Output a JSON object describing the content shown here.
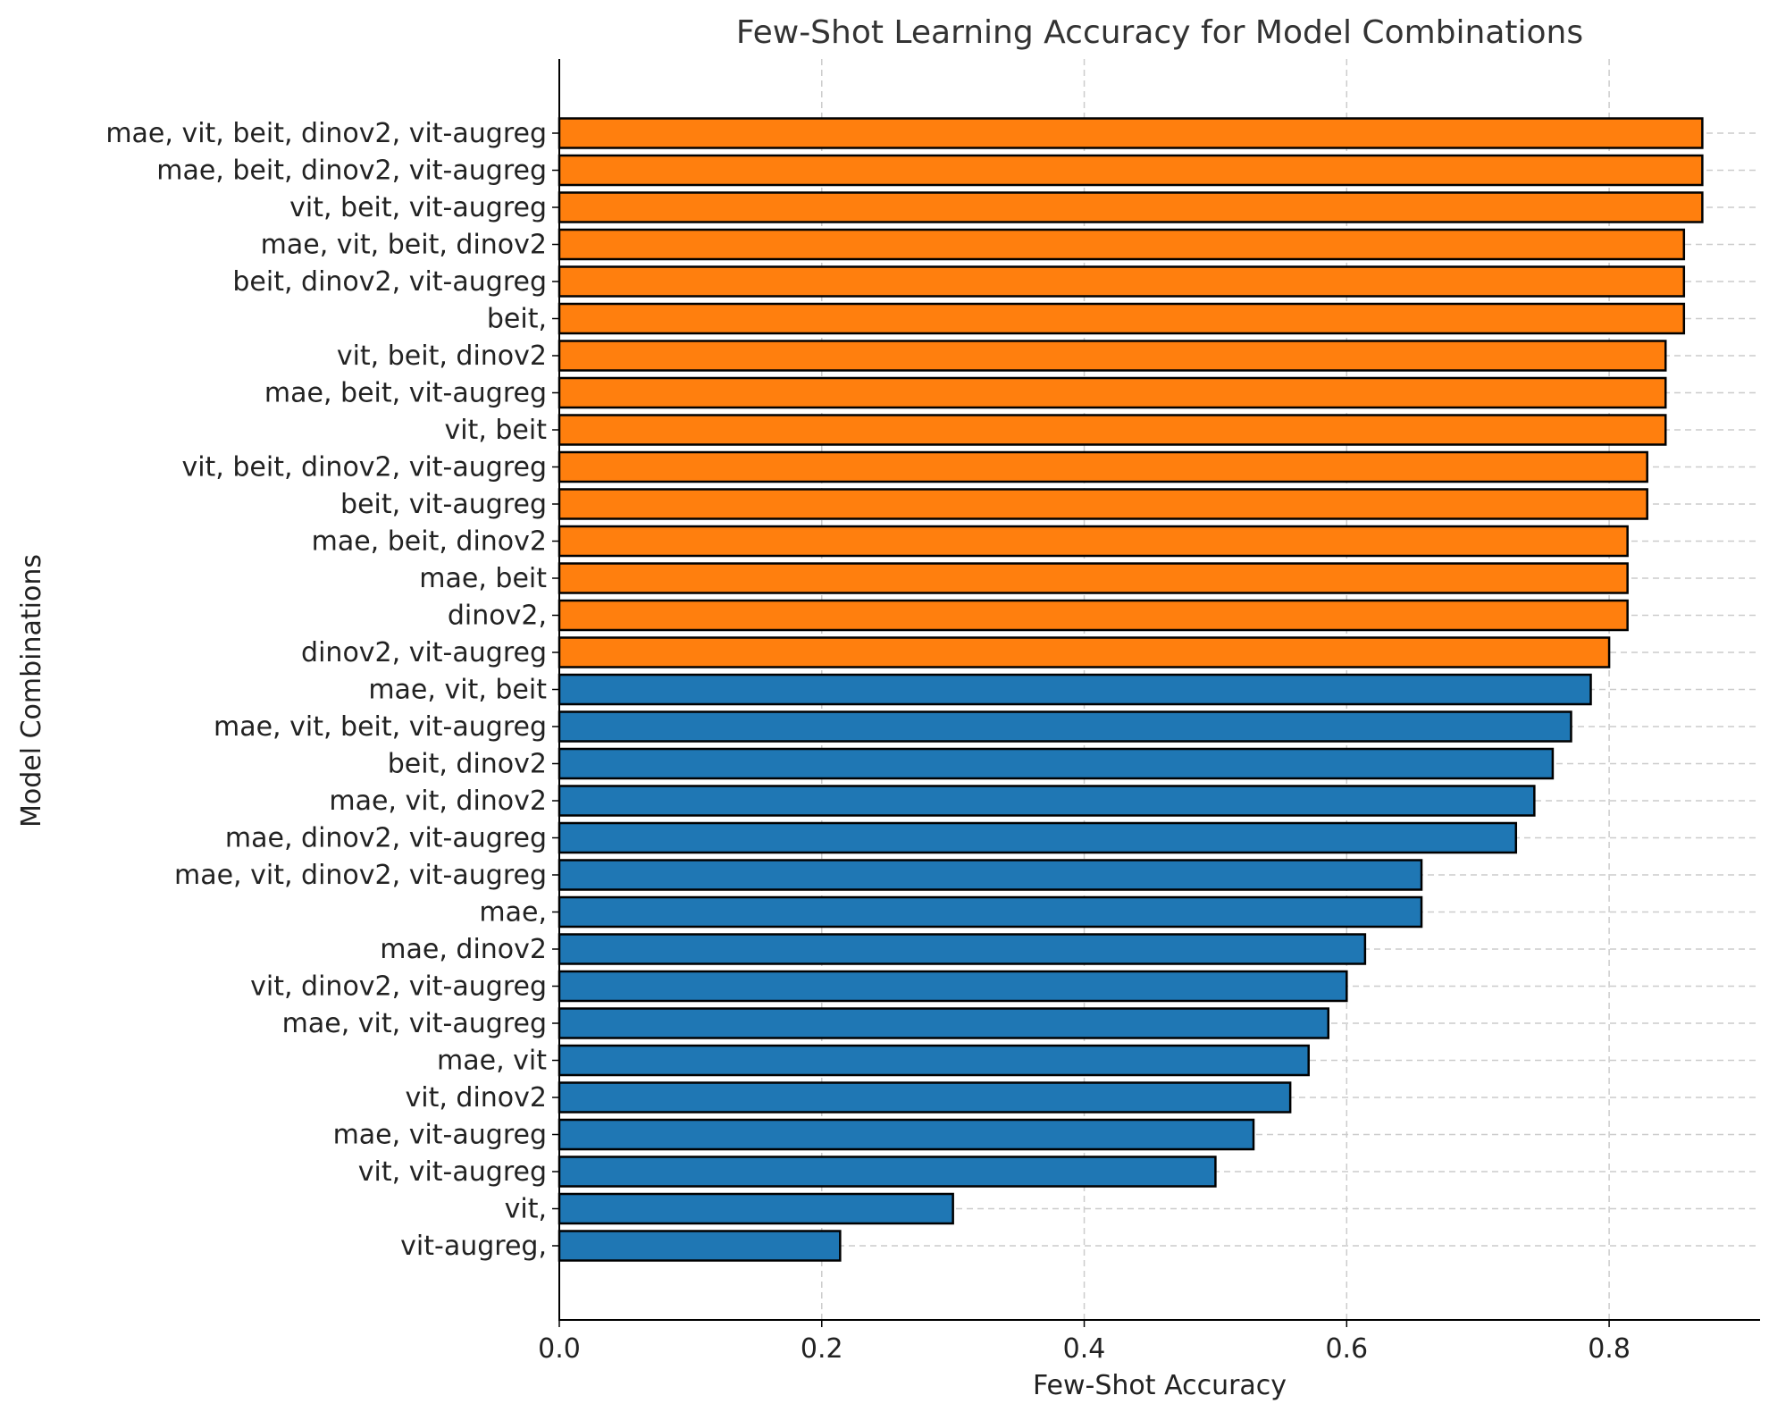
{
  "chart_data": {
    "type": "bar",
    "orientation": "horizontal",
    "title": "Few-Shot Learning Accuracy for Model Combinations",
    "xlabel": "Few-Shot Accuracy",
    "ylabel": "Model Combinations",
    "xlim": [
      0,
      0.915
    ],
    "xticks": [
      "0.0",
      "0.2",
      "0.4",
      "0.6",
      "0.8"
    ],
    "grid": true,
    "colors": {
      "high": "#ff7f0e",
      "low": "#1f77b4",
      "edge": "#000000",
      "grid": "#cccccc"
    },
    "categories": [
      "mae, vit, beit, dinov2, vit-augreg",
      "mae, beit, dinov2, vit-augreg",
      "vit, beit, vit-augreg",
      "mae, vit, beit, dinov2",
      "beit, dinov2, vit-augreg",
      "beit,",
      "vit, beit, dinov2",
      "mae, beit, vit-augreg",
      "vit, beit",
      "vit, beit, dinov2, vit-augreg",
      "beit, vit-augreg",
      "mae, beit, dinov2",
      "mae, beit",
      "dinov2,",
      "dinov2, vit-augreg",
      "mae, vit, beit",
      "mae, vit, beit, vit-augreg",
      "beit, dinov2",
      "mae, vit, dinov2",
      "mae, dinov2, vit-augreg",
      "mae, vit, dinov2, vit-augreg",
      "mae,",
      "mae, dinov2",
      "vit, dinov2, vit-augreg",
      "mae, vit, vit-augreg",
      "mae, vit",
      "vit, dinov2",
      "mae, vit-augreg",
      "vit, vit-augreg",
      "vit,",
      "vit-augreg,"
    ],
    "values": [
      0.871,
      0.871,
      0.871,
      0.857,
      0.857,
      0.857,
      0.843,
      0.843,
      0.843,
      0.829,
      0.829,
      0.814,
      0.814,
      0.814,
      0.8,
      0.786,
      0.771,
      0.757,
      0.743,
      0.729,
      0.657,
      0.657,
      0.614,
      0.6,
      0.586,
      0.571,
      0.557,
      0.529,
      0.5,
      0.3,
      0.214
    ],
    "highlight_count": 15
  }
}
